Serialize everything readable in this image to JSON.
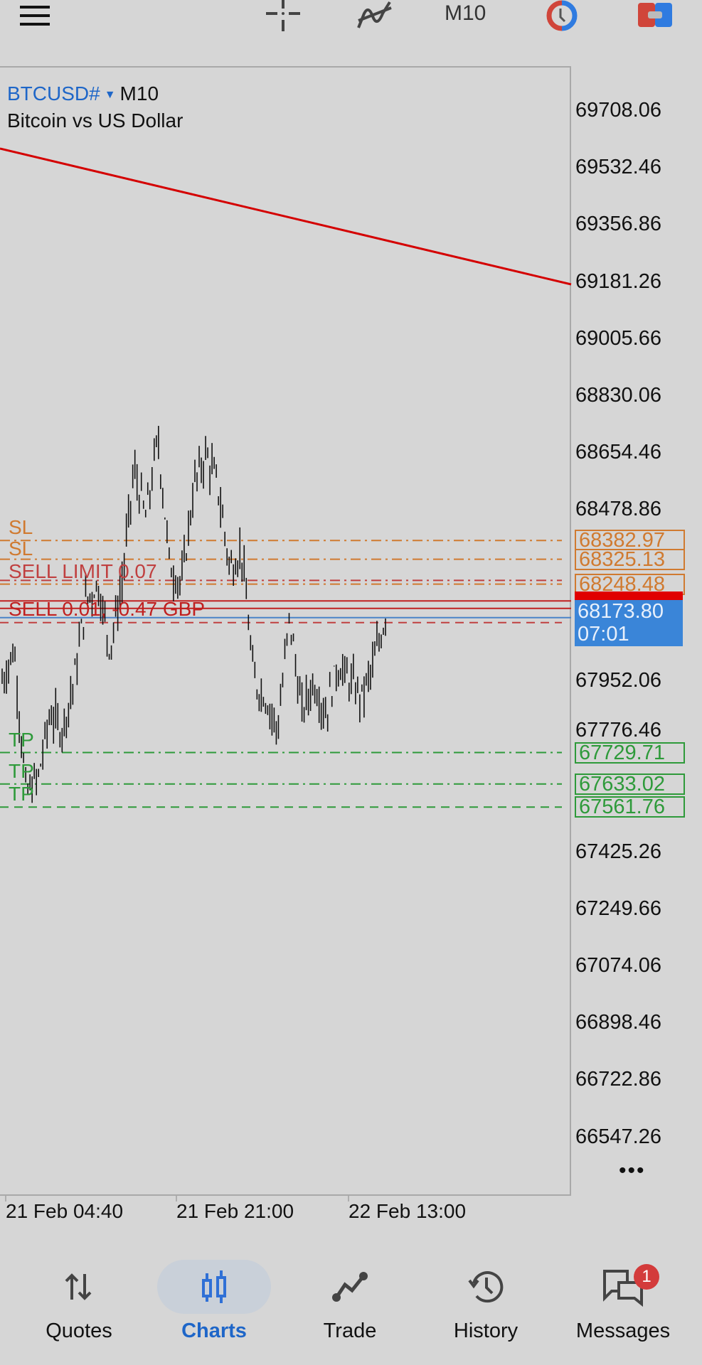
{
  "toolbar": {
    "menu_icon": "hamburger-icon",
    "crosshair_icon": "crosshair-icon",
    "indicators_icon": "indicator-icon",
    "timeframe": "M10",
    "clock_icon": "clock-icon",
    "trade_icon": "one-click-trade-icon"
  },
  "chart": {
    "symbol": "BTCUSD#",
    "timeframe": "M10",
    "description": "Bitcoin vs US Dollar",
    "more_label": "•••",
    "colors": {
      "background": "#d6d6d6",
      "trendline": "#d40000",
      "sl": "#d07a30",
      "order": "#c04040",
      "tp": "#2e9a3a",
      "bid": "#3a85d8"
    }
  },
  "chart_data": {
    "type": "candlestick",
    "price_ticks": [
      "69708.06",
      "69532.46",
      "69356.86",
      "69181.26",
      "69005.66",
      "68830.06",
      "68654.46",
      "68478.86",
      "67952.06",
      "67776.46",
      "67425.26",
      "67249.66",
      "67074.06",
      "66898.46",
      "66722.86",
      "66547.26"
    ],
    "time_ticks": [
      "21 Feb 04:40",
      "21 Feb 21:00",
      "22 Feb 13:00"
    ],
    "approx_price_path": [
      67950,
      68050,
      67600,
      67650,
      67850,
      67800,
      67950,
      68200,
      68250,
      68050,
      68250,
      68600,
      68450,
      68700,
      68300,
      68250,
      68550,
      68650,
      68550,
      68300,
      68350,
      67950,
      67900,
      67800,
      68150,
      67850,
      67950,
      67850,
      68000,
      67950,
      67900,
      68000,
      68150
    ],
    "trendline": {
      "start_price": 69300,
      "end_price": 69181.26
    },
    "levels": [
      {
        "price": 68382.97,
        "label": "SL",
        "box": "68382.97",
        "type": "sl"
      },
      {
        "price": 68325.13,
        "label": "SL",
        "box": "68325.13",
        "type": "sl"
      },
      {
        "price": 68260.0,
        "label": "SELL LIMIT 0.07",
        "type": "order"
      },
      {
        "price": 68248.48,
        "label": "",
        "box": "68248.48",
        "type": "sl"
      },
      {
        "price": 68196.8,
        "label": "",
        "type": "ask"
      },
      {
        "price": 68173.8,
        "label": "SELL 0.01, -0.47 GBP",
        "type": "position"
      },
      {
        "price": 68130.0,
        "label": "",
        "type": "order-dash"
      },
      {
        "price": 67729.71,
        "label": "TP",
        "box": "67729.71",
        "type": "tp"
      },
      {
        "price": 67633.02,
        "label": "TP",
        "box": "67633.02",
        "type": "tp"
      },
      {
        "price": 67561.76,
        "label": "TP",
        "box": "67561.76",
        "type": "tp-dash"
      }
    ],
    "bid": {
      "price": "68173.80",
      "timer": "07:01"
    }
  },
  "nav": {
    "items": [
      {
        "label": "Quotes",
        "icon": "quotes-arrows-icon"
      },
      {
        "label": "Charts",
        "icon": "candles-icon",
        "active": true
      },
      {
        "label": "Trade",
        "icon": "trade-line-icon"
      },
      {
        "label": "History",
        "icon": "history-icon"
      },
      {
        "label": "Messages",
        "icon": "messages-icon",
        "badge": "1"
      }
    ]
  }
}
